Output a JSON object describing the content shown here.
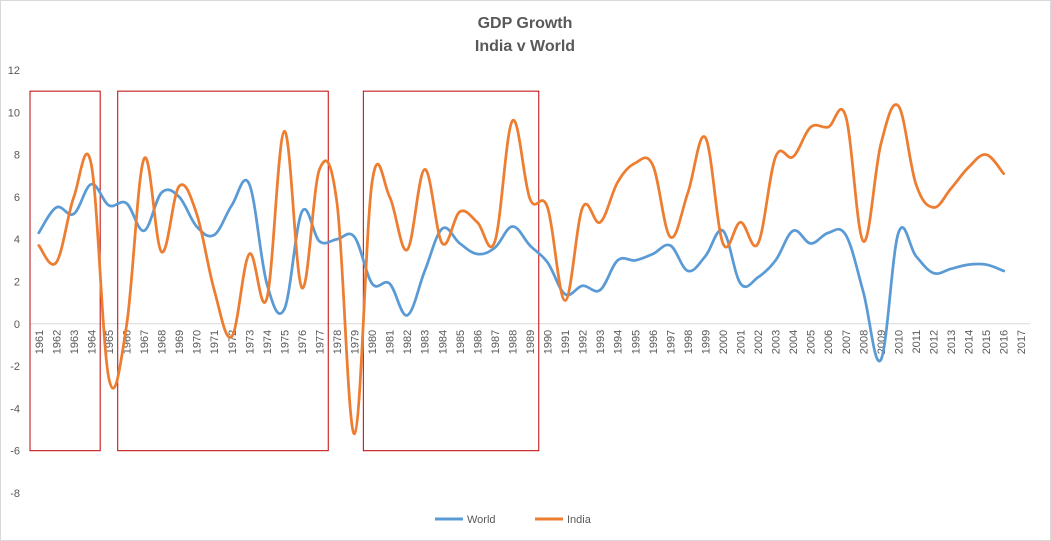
{
  "chart_data": {
    "type": "line",
    "title": "GDP Growth",
    "subtitle": "India v World",
    "xlabel": "",
    "ylabel": "",
    "ylim": [
      -8,
      12
    ],
    "yticks": [
      -8,
      -6,
      -4,
      -2,
      0,
      2,
      4,
      6,
      8,
      10,
      12
    ],
    "x": [
      "1961",
      "1962",
      "1963",
      "1964",
      "1965",
      "1966",
      "1967",
      "1968",
      "1969",
      "1970",
      "1971",
      "1972",
      "1973",
      "1974",
      "1975",
      "1976",
      "1977",
      "1978",
      "1979",
      "1980",
      "1981",
      "1982",
      "1983",
      "1984",
      "1985",
      "1986",
      "1987",
      "1988",
      "1989",
      "1990",
      "1991",
      "1992",
      "1993",
      "1994",
      "1995",
      "1996",
      "1997",
      "1998",
      "1999",
      "2000",
      "2001",
      "2002",
      "2003",
      "2004",
      "2005",
      "2006",
      "2007",
      "2008",
      "2009",
      "2010",
      "2011",
      "2012",
      "2013",
      "2014",
      "2015",
      "2016",
      "2017"
    ],
    "series": [
      {
        "name": "World",
        "color": "#5b9bd5",
        "values": [
          4.3,
          5.5,
          5.2,
          6.6,
          5.6,
          5.7,
          4.4,
          6.2,
          6.0,
          4.6,
          4.2,
          5.6,
          6.6,
          1.9,
          0.7,
          5.3,
          3.9,
          4.0,
          4.1,
          1.9,
          1.9,
          0.4,
          2.5,
          4.5,
          3.8,
          3.3,
          3.6,
          4.6,
          3.7,
          2.9,
          1.4,
          1.8,
          1.6,
          3.0,
          3.0,
          3.3,
          3.7,
          2.5,
          3.2,
          4.4,
          1.9,
          2.2,
          3.0,
          4.4,
          3.8,
          4.3,
          4.2,
          1.5,
          -1.7,
          4.3,
          3.2,
          2.4,
          2.6,
          2.8,
          2.8,
          2.5,
          null
        ]
      },
      {
        "name": "India",
        "color": "#ed7d31",
        "values": [
          3.7,
          2.9,
          6.0,
          7.5,
          -2.6,
          -0.1,
          7.8,
          3.4,
          6.5,
          5.2,
          1.6,
          -0.6,
          3.3,
          1.2,
          9.1,
          1.7,
          7.3,
          5.7,
          -5.2,
          6.7,
          6.0,
          3.5,
          7.3,
          3.8,
          5.3,
          4.8,
          3.9,
          9.6,
          5.9,
          5.5,
          1.1,
          5.5,
          4.8,
          6.7,
          7.6,
          7.5,
          4.1,
          6.2,
          8.8,
          3.8,
          4.8,
          3.8,
          7.9,
          7.9,
          9.3,
          9.3,
          9.8,
          3.9,
          8.5,
          10.3,
          6.6,
          5.5,
          6.4,
          7.4,
          8.0,
          7.1,
          null
        ]
      }
    ],
    "annotations": [
      {
        "type": "box",
        "x_from": "1961",
        "x_to": "1964",
        "y_from": -6,
        "y_to": 11,
        "color": "#c00000"
      },
      {
        "type": "box",
        "x_from": "1966",
        "x_to": "1977",
        "y_from": -6,
        "y_to": 11,
        "color": "#c00000"
      },
      {
        "type": "box",
        "x_from": "1980",
        "x_to": "1989",
        "y_from": -6,
        "y_to": 11,
        "color": "#c00000"
      }
    ],
    "legend_position": "bottom",
    "grid": false
  }
}
